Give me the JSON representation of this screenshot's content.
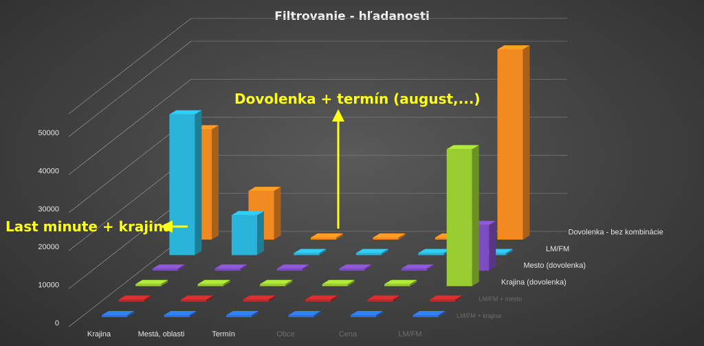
{
  "chart_data": {
    "type": "bar",
    "title": "Filtrovanie - hľadanosti",
    "xlabel": "",
    "ylabel": "",
    "ylim": [
      0,
      50000
    ],
    "y_ticks": [
      "0",
      "10000",
      "20000",
      "30000",
      "40000",
      "50000"
    ],
    "categories": [
      "Krajina",
      "Mestá, oblasti",
      "Termín",
      "Obce",
      "Cena",
      "LM/FM"
    ],
    "series": [
      {
        "name": "LM/FM + krajina",
        "color": "#2f6fd4",
        "values": [
          0,
          0,
          400,
          400,
          400,
          400
        ]
      },
      {
        "name": "LM/FM + mesto",
        "color": "#c0282a",
        "values": [
          0,
          0,
          0,
          0,
          0,
          500
        ]
      },
      {
        "name": "Krajina (dovolenka)",
        "color": "#9acd32",
        "values": [
          0,
          0,
          0,
          500,
          0,
          36000
        ]
      },
      {
        "name": "Mesto (dovolenka)",
        "color": "#7c4dbe",
        "values": [
          0,
          0,
          0,
          0,
          0,
          12000
        ]
      },
      {
        "name": "LM/FM",
        "color": "#2ab4d9",
        "values": [
          37000,
          10500,
          300,
          300,
          300,
          300
        ]
      },
      {
        "name": "Dovolenka - bez kombinácie",
        "color": "#f28a22",
        "values": [
          29000,
          12800,
          300,
          300,
          0,
          50000
        ]
      }
    ],
    "grid": true,
    "legend": "right, labels at row ends",
    "annotations": [
      {
        "text": "Dovolenka + termín (august,...)",
        "color": "#ffff1a"
      },
      {
        "text": "Last minute + krajina",
        "color": "#ffff1a"
      }
    ]
  }
}
